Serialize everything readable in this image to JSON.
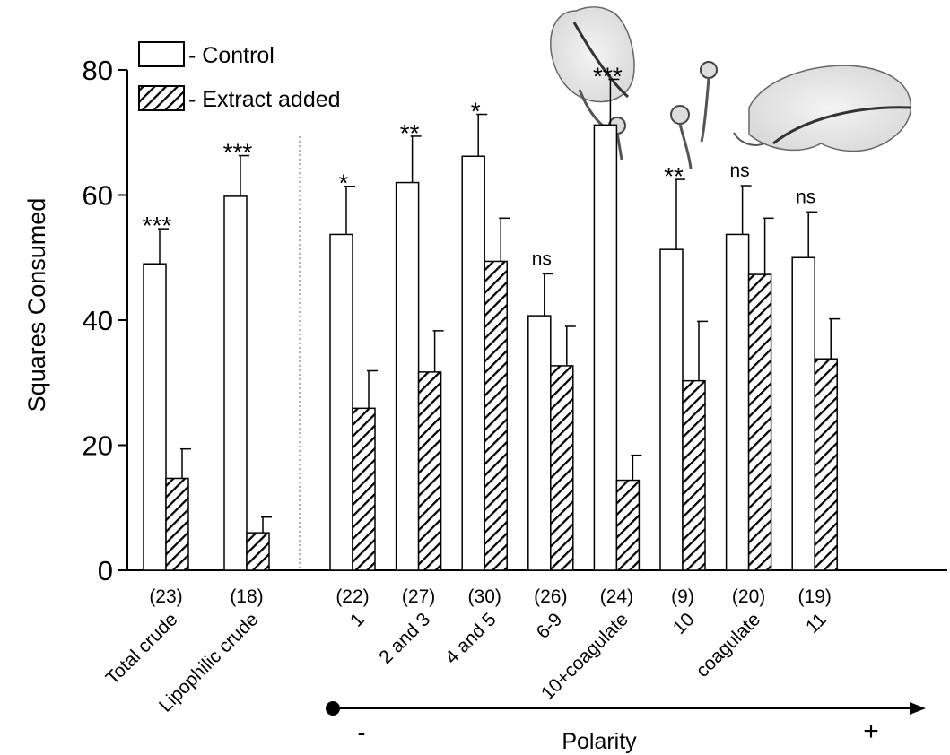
{
  "chart_data": {
    "type": "bar",
    "ylabel": "Squares Consumed",
    "ylim": [
      0,
      80
    ],
    "yticks": [
      0,
      20,
      40,
      60,
      80
    ],
    "legend_position": "top-left",
    "categories": [
      "Total crude",
      "Lipophilic crude",
      "1",
      "2 and 3",
      "4 and 5",
      "6-9",
      "10+coagulate",
      "10",
      "coagulate",
      "11"
    ],
    "sample_sizes": [
      "(23)",
      "(18)",
      "(22)",
      "(27)",
      "(30)",
      "(26)",
      "(24)",
      "(9)",
      "(20)",
      "(19)"
    ],
    "significance": [
      "***",
      "***",
      "*",
      "**",
      "*",
      "ns",
      "***",
      "**",
      "ns",
      "ns"
    ],
    "series": [
      {
        "name": "- Control",
        "pattern": "open",
        "values": [
          49,
          59.8,
          53.7,
          62,
          66.2,
          40.7,
          71.2,
          51.3,
          53.7,
          50
        ],
        "errors": [
          5.6,
          6.5,
          7.7,
          7.4,
          6.7,
          6.7,
          7.3,
          11.2,
          7.8,
          7.3
        ]
      },
      {
        "name": "- Extract added",
        "pattern": "hatched",
        "values": [
          14.7,
          6,
          25.9,
          31.7,
          49.4,
          32.7,
          14.4,
          30.3,
          47.3,
          33.8
        ],
        "errors": [
          4.7,
          2.5,
          6,
          6.6,
          6.9,
          6.3,
          4,
          9.5,
          9,
          6.4
        ]
      }
    ],
    "divider_after_category": 1,
    "polarity_axis": {
      "label": "Polarity",
      "minus": "-",
      "plus": "+"
    }
  }
}
